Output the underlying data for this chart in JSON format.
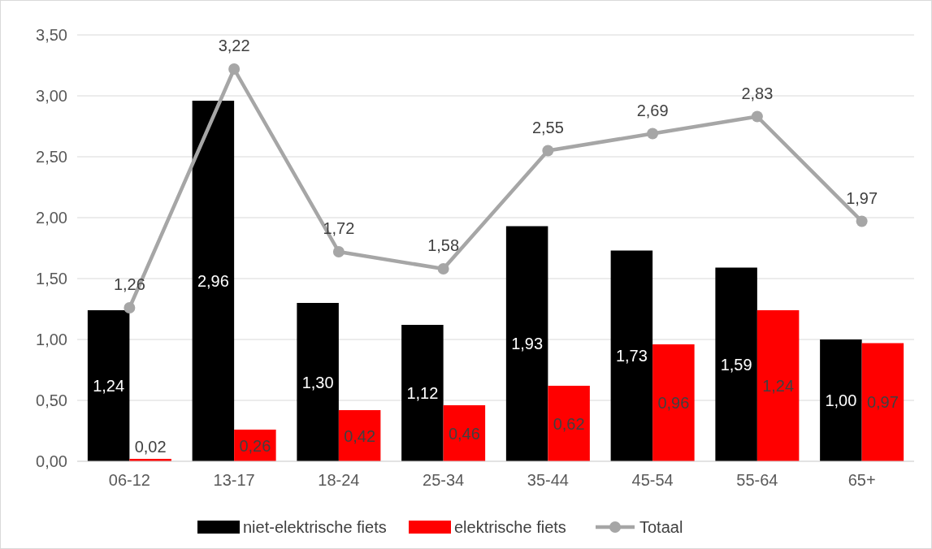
{
  "chart_data": {
    "type": "bar",
    "categories": [
      "06-12",
      "13-17",
      "18-24",
      "25-34",
      "35-44",
      "45-54",
      "55-64",
      "65+"
    ],
    "series": [
      {
        "name": "niet-elektrische fiets",
        "color": "#000000",
        "values": [
          1.24,
          2.96,
          1.3,
          1.12,
          1.93,
          1.73,
          1.59,
          1.0
        ],
        "value_labels": [
          "1,24",
          "2,96",
          "1,30",
          "1,12",
          "1,93",
          "1,73",
          "1,59",
          "1,00"
        ]
      },
      {
        "name": "elektrische fiets",
        "color": "#ff0000",
        "values": [
          0.02,
          0.26,
          0.42,
          0.46,
          0.62,
          0.96,
          1.24,
          0.97
        ],
        "value_labels": [
          "0,02",
          "0,26",
          "0,42",
          "0,46",
          "0,62",
          "0,96",
          "1,24",
          "0,97"
        ]
      },
      {
        "name": "Totaal",
        "type": "line",
        "color": "#a6a6a6",
        "marker": "circle",
        "values": [
          1.26,
          3.22,
          1.72,
          1.58,
          2.55,
          2.69,
          2.83,
          1.97
        ],
        "value_labels": [
          "1,26",
          "3,22",
          "1,72",
          "1,58",
          "2,55",
          "2,69",
          "2,83",
          "1,97"
        ]
      }
    ],
    "ylim": [
      0,
      3.5
    ],
    "yticks": [
      {
        "value": 0,
        "label": "0,00"
      },
      {
        "value": 0.5,
        "label": "0,50"
      },
      {
        "value": 1,
        "label": "1,00"
      },
      {
        "value": 1.5,
        "label": "1,50"
      },
      {
        "value": 2,
        "label": "2,00"
      },
      {
        "value": 2.5,
        "label": "2,50"
      },
      {
        "value": 3,
        "label": "3,00"
      },
      {
        "value": 3.5,
        "label": "3,50"
      }
    ],
    "grid": "y",
    "legend": "bottom"
  }
}
